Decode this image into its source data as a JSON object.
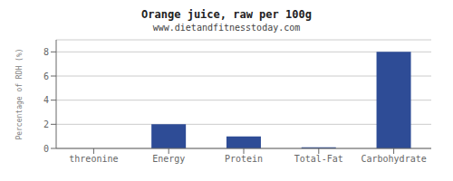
{
  "chart_data": {
    "type": "bar",
    "title": "Orange juice, raw per 100g",
    "subtitle": "www.dietandfitnesstoday.com",
    "categories": [
      "threonine",
      "Energy",
      "Protein",
      "Total-Fat",
      "Carbohydrate"
    ],
    "values": [
      0.0,
      2.0,
      1.0,
      0.1,
      8.0
    ],
    "color": "#2e4c96",
    "ylabel": "Percentage of RDH (%)",
    "ylim": [
      0,
      9
    ],
    "yticks": [
      0,
      2,
      4,
      6,
      8
    ],
    "grid": true
  }
}
